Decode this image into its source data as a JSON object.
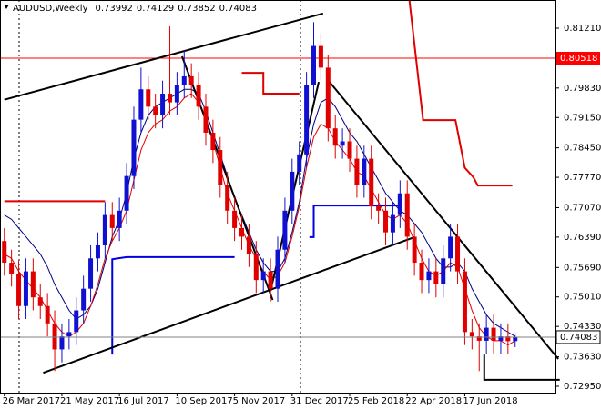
{
  "chart_data": {
    "type": "candlestick",
    "symbol": "AUDUSD,Weekly",
    "categories": [
      "26 Mar 2017",
      null,
      null,
      null,
      null,
      null,
      null,
      null,
      "21 May 2017",
      null,
      null,
      null,
      null,
      null,
      null,
      null,
      "16 Jul 2017",
      null,
      null,
      null,
      null,
      null,
      null,
      null,
      "10 Sep 2017",
      null,
      null,
      null,
      null,
      null,
      null,
      null,
      "5 Nov 2017",
      null,
      null,
      null,
      null,
      null,
      null,
      null,
      "31 Dec 2017",
      null,
      null,
      null,
      null,
      null,
      null,
      null,
      "25 Feb 2018",
      null,
      null,
      null,
      null,
      null,
      null,
      null,
      "22 Apr 2018",
      null,
      null,
      null,
      null,
      null,
      null,
      null,
      "17 Jun 2018",
      null,
      null,
      null,
      null,
      null,
      null,
      null
    ],
    "open": [
      0.763,
      0.758,
      0.7555,
      0.748,
      0.756,
      0.75,
      0.748,
      0.744,
      0.738,
      0.741,
      0.742,
      0.747,
      0.752,
      0.759,
      0.762,
      0.769,
      0.766,
      0.77,
      0.778,
      0.791,
      0.798,
      0.794,
      0.792,
      0.797,
      0.795,
      0.799,
      0.801,
      0.799,
      0.794,
      0.788,
      0.784,
      0.776,
      0.77,
      0.766,
      0.764,
      0.76,
      0.754,
      0.756,
      0.752,
      0.761,
      0.77,
      0.779,
      0.783,
      0.799,
      0.808,
      0.803,
      0.789,
      0.785,
      0.786,
      0.782,
      0.776,
      0.782,
      0.771,
      0.77,
      0.765,
      0.769,
      0.774,
      0.764,
      0.758,
      0.754,
      0.756,
      0.753,
      0.759,
      0.764,
      0.756,
      0.742,
      0.741,
      0.74,
      0.743,
      0.74,
      0.741,
      0.73992
    ],
    "high": [
      0.766,
      0.761,
      0.7585,
      0.759,
      0.759,
      0.753,
      0.751,
      0.747,
      0.744,
      0.745,
      0.75,
      0.755,
      0.762,
      0.765,
      0.772,
      0.772,
      0.773,
      0.781,
      0.794,
      0.803,
      0.801,
      0.797,
      0.8,
      0.8125,
      0.802,
      0.807,
      0.804,
      0.802,
      0.797,
      0.791,
      0.787,
      0.779,
      0.773,
      0.769,
      0.767,
      0.763,
      0.759,
      0.759,
      0.764,
      0.773,
      0.782,
      0.786,
      0.802,
      0.8135,
      0.811,
      0.806,
      0.792,
      0.789,
      0.789,
      0.785,
      0.785,
      0.785,
      0.774,
      0.773,
      0.772,
      0.777,
      0.777,
      0.767,
      0.761,
      0.759,
      0.759,
      0.762,
      0.767,
      0.767,
      0.759,
      0.745,
      0.744,
      0.746,
      0.746,
      0.744,
      0.744,
      0.74129
    ],
    "low": [
      0.755,
      0.7525,
      0.745,
      0.745,
      0.747,
      0.745,
      0.741,
      0.733,
      0.735,
      0.738,
      0.739,
      0.744,
      0.749,
      0.756,
      0.759,
      0.763,
      0.763,
      0.767,
      0.775,
      0.788,
      0.791,
      0.789,
      0.789,
      0.792,
      0.792,
      0.796,
      0.796,
      0.791,
      0.785,
      0.781,
      0.773,
      0.767,
      0.763,
      0.761,
      0.757,
      0.751,
      0.751,
      0.749,
      0.749,
      0.758,
      0.767,
      0.776,
      0.78,
      0.796,
      0.8,
      0.786,
      0.782,
      0.782,
      0.779,
      0.773,
      0.773,
      0.768,
      0.767,
      0.762,
      0.762,
      0.766,
      0.761,
      0.755,
      0.751,
      0.751,
      0.75,
      0.75,
      0.756,
      0.753,
      0.739,
      0.738,
      0.733,
      0.737,
      0.737,
      0.737,
      0.7369,
      0.73852
    ],
    "close": [
      0.758,
      0.7555,
      0.748,
      0.756,
      0.75,
      0.748,
      0.744,
      0.738,
      0.741,
      0.742,
      0.747,
      0.752,
      0.759,
      0.762,
      0.769,
      0.766,
      0.77,
      0.778,
      0.791,
      0.798,
      0.794,
      0.792,
      0.797,
      0.795,
      0.799,
      0.801,
      0.799,
      0.794,
      0.788,
      0.784,
      0.776,
      0.77,
      0.766,
      0.764,
      0.76,
      0.754,
      0.756,
      0.752,
      0.761,
      0.77,
      0.779,
      0.783,
      0.799,
      0.808,
      0.803,
      0.789,
      0.785,
      0.786,
      0.782,
      0.776,
      0.782,
      0.771,
      0.77,
      0.765,
      0.769,
      0.774,
      0.764,
      0.758,
      0.754,
      0.756,
      0.753,
      0.759,
      0.764,
      0.756,
      0.742,
      0.741,
      0.74,
      0.743,
      0.74,
      0.741,
      0.7399,
      0.74083
    ],
    "bull_color": "#1010d0",
    "bear_color": "#e00000",
    "series": [
      {
        "color": "#000080",
        "values": [
          0.769,
          0.768,
          0.766,
          0.764,
          0.762,
          0.76,
          0.757,
          0.753,
          0.75,
          0.747,
          0.745,
          0.746,
          0.748,
          0.752,
          0.758,
          0.764,
          0.768,
          0.774,
          0.782,
          0.788,
          0.792,
          0.794,
          0.795,
          0.796,
          0.797,
          0.798,
          0.798,
          0.797,
          0.793,
          0.788,
          0.783,
          0.778,
          0.773,
          0.769,
          0.765,
          0.761,
          0.758,
          0.756,
          0.756,
          0.759,
          0.765,
          0.772,
          0.782,
          0.79,
          0.795,
          0.796,
          0.794,
          0.791,
          0.788,
          0.786,
          0.783,
          0.78,
          0.777,
          0.774,
          0.772,
          0.77,
          0.769,
          0.767,
          0.765,
          0.762,
          0.759,
          0.757,
          0.757,
          0.758,
          0.756,
          0.752,
          0.749,
          0.746,
          0.744,
          0.743,
          0.742,
          0.741
        ]
      },
      {
        "color": "#e00000",
        "values": [
          0.76,
          0.759,
          0.756,
          0.754,
          0.752,
          0.75,
          0.747,
          0.744,
          0.742,
          0.741,
          0.742,
          0.744,
          0.748,
          0.753,
          0.759,
          0.763,
          0.766,
          0.77,
          0.777,
          0.784,
          0.788,
          0.79,
          0.791,
          0.793,
          0.794,
          0.796,
          0.797,
          0.795,
          0.791,
          0.786,
          0.78,
          0.774,
          0.77,
          0.766,
          0.762,
          0.759,
          0.756,
          0.754,
          0.755,
          0.758,
          0.764,
          0.771,
          0.78,
          0.787,
          0.79,
          0.789,
          0.786,
          0.784,
          0.782,
          0.779,
          0.778,
          0.775,
          0.772,
          0.769,
          0.768,
          0.769,
          0.767,
          0.763,
          0.759,
          0.756,
          0.755,
          0.756,
          0.758,
          0.757,
          0.752,
          0.747,
          0.743,
          0.741,
          0.74,
          0.74,
          0.739,
          0.74
        ]
      }
    ],
    "step_lines": [
      {
        "color": "#e00000",
        "x": [
          0,
          14
        ],
        "y": [
          0.7722,
          0.7722
        ]
      },
      {
        "color": "#e00000",
        "x": [
          33,
          36,
          36,
          41
        ],
        "y": [
          0.8018,
          0.8018,
          0.797,
          0.797
        ]
      },
      {
        "color": "#e00000",
        "x": [
          56.3,
          58.2,
          62.7,
          64,
          65.2,
          65.8,
          70.6
        ],
        "y": [
          0.8186,
          0.7909,
          0.7909,
          0.7799,
          0.7777,
          0.7758,
          0.7758
        ]
      },
      {
        "color": "#0000e0",
        "x": [
          15,
          15,
          17,
          32
        ],
        "y": [
          0.7368,
          0.7588,
          0.7593,
          0.7593
        ]
      },
      {
        "color": "#0000e0",
        "x": [
          42.4,
          43,
          43,
          55
        ],
        "y": [
          0.7639,
          0.7639,
          0.7712,
          0.7712
        ]
      }
    ],
    "trendlines": [
      {
        "x": [
          0,
          44.3
        ],
        "y": [
          0.7956,
          0.8155
        ]
      },
      {
        "x": [
          5.4,
          57
        ],
        "y": [
          0.7326,
          0.7639
        ]
      },
      {
        "x": [
          24.7,
          37.3
        ],
        "y": [
          0.8056,
          0.7494
        ]
      },
      {
        "x": [
          37,
          43.7
        ],
        "y": [
          0.7515,
          0.7997
        ]
      },
      {
        "x": [
          45.2,
          77
        ],
        "y": [
          0.7997,
          0.7358
        ]
      },
      {
        "x": [
          66.7,
          66.7,
          77.2
        ],
        "y": [
          0.7368,
          0.731,
          0.731
        ]
      }
    ],
    "level": {
      "value": 0.80518,
      "color": "#ff0000"
    },
    "xlim": [
      -0.6,
      76.6
    ],
    "ylim": [
      0.72803,
      0.8186
    ],
    "yticks": [
      {
        "value": 0.8121,
        "label": "0.81210"
      },
      {
        "value": 0.7983,
        "label": "0.79830"
      },
      {
        "value": 0.7915,
        "label": "0.79150"
      },
      {
        "value": 0.7845,
        "label": "0.78450"
      },
      {
        "value": 0.7777,
        "label": "0.77770"
      },
      {
        "value": 0.7707,
        "label": "0.77070"
      },
      {
        "value": 0.7639,
        "label": "0.76390"
      },
      {
        "value": 0.7569,
        "label": "0.75690"
      },
      {
        "value": 0.7501,
        "label": "0.75010"
      },
      {
        "value": 0.7433,
        "label": "0.74330"
      },
      {
        "value": 0.7363,
        "label": "0.73630"
      },
      {
        "value": 0.7295,
        "label": "0.72950"
      }
    ]
  }
}
